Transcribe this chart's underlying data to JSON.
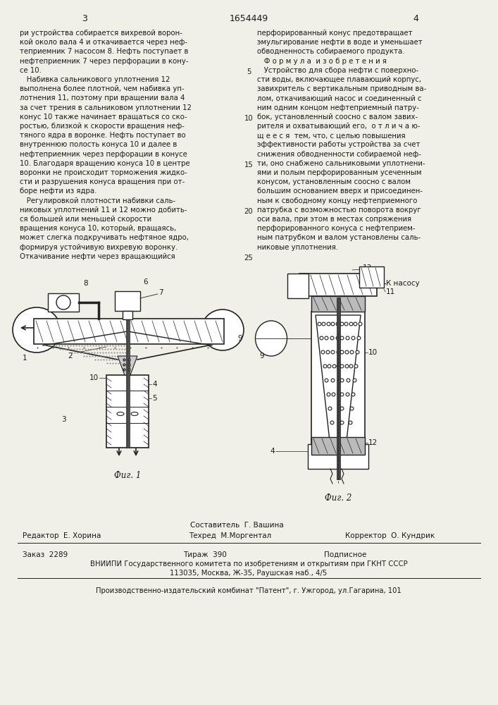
{
  "page_width": 7.07,
  "page_height": 10.0,
  "bg_color": "#f0efe8",
  "header_page_left": "3",
  "header_center": "1654449",
  "header_page_right": "4",
  "left_col_text": [
    "ри устройства собирается вихревой ворон-",
    "кой около вала 4 и откачивается через неф-",
    "теприемник 7 насосом 8. Нефть поступает в",
    "нефтеприемник 7 через перфорации в кону-",
    "се 10.",
    "   Набивка сальникового уплотнения 12",
    "выполнена более плотной, чем набивка уп-",
    "лотнения 11, поэтому при вращении вала 4",
    "за счет трения в сальниковом уплотнении 12",
    "конус 10 также начинает вращаться со ско-",
    "ростью, близкой к скорости вращения неф-",
    "тяного ядра в воронке. Нефть поступает во",
    "внутреннюю полость конуса 10 и далее в",
    "нефтеприемник через перфорации в конусе",
    "10. Благодаря вращению конуса 10 в центре",
    "воронки не происходит торможения жидко-",
    "сти и разрушения конуса вращения при от-",
    "боре нефти из ядра.",
    "   Регулировкой плотности набивки саль-",
    "никовых уплотнений 11 и 12 можно добить-",
    "ся большей или меньшей скорости",
    "вращения конуса 10, который, вращаясь,",
    "может слегка подкручивать нефтяное ядро,",
    "формируя устойчивую вихревую воронку.",
    "Откачивание нефти через вращающийся"
  ],
  "right_col_text": [
    "перфорированный конус предотвращает",
    "эмульгирование нефти в воде и уменьшает",
    "обводненность собираемого продукта.",
    "   Ф о р м у л а  и з о б р е т е н и я",
    "   Устройство для сбора нефти с поверхно-",
    "сти воды, включающее плавающий корпус,",
    "завихритель с вертикальным приводным ва-",
    "лом, откачивающий насос и соединенный с",
    "ним одним концом нефтеприемный патру-",
    "бок, установленный соосно с валом завих-",
    "рителя и охватывающий его,  о т л и ч а ю-",
    "щ е е с я  тем, что, с целью повышения",
    "эффективности работы устройства за счет",
    "снижения обводненности собираемой неф-",
    "ти, оно снабжено сальниковыми уплотнени-",
    "ями и полым перфорированным усеченным",
    "конусом, установленным соосно с валом",
    "большим основанием вверх и присоединен-",
    "ным к свободному концу нефтеприемного",
    "патрубка с возможностью поворота вокруг",
    "оси вала, при этом в местах сопряжения",
    "перфорированного конуса с нефтеприем-",
    "ным патрубком и валом установлены саль-",
    "никовые уплотнения."
  ],
  "fig1_caption": "Фиг. 1",
  "fig2_caption": "Фиг. 2",
  "footer_composer_label": "Составитель",
  "footer_composer_name": "Г. Вашина",
  "footer_editor_label": "Редактор",
  "footer_editor_name": "Е. Хорина",
  "footer_techred_label": "Техред",
  "footer_techred_name": "М.Моргентал",
  "footer_corrector_label": "Корректор",
  "footer_corrector_name": "О. Кундрик",
  "footer_order": "Заказ  2289",
  "footer_tirazh": "Тираж  390",
  "footer_podpisnoe": "Подписное",
  "footer_vniip1": "ВНИИПИ Государственного комитета по изобретениям и открытиям при ГКНТ СССР",
  "footer_vniip2": "113035, Москва, Ж-35, Раушская наб., 4/5",
  "footer_production": "Производственно-издательский комбинат \"Патент\", г. Ужгород, ул.Гагарина, 101",
  "text_color": "#1a1a1a",
  "line_color": "#222222"
}
